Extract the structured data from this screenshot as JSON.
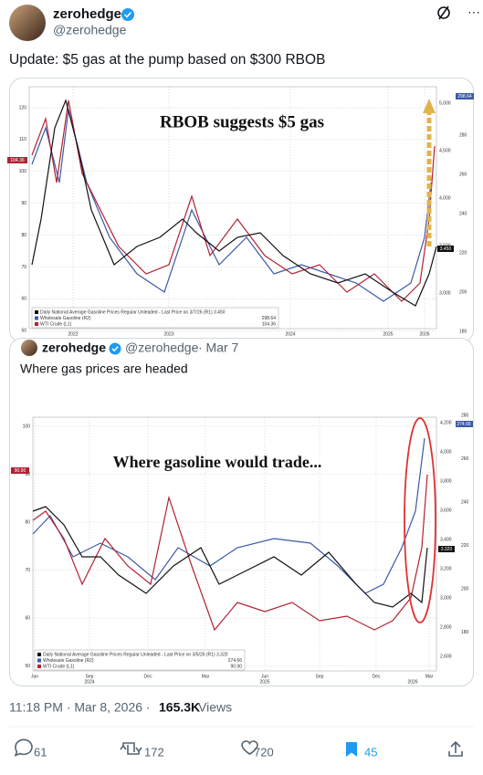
{
  "tweet": {
    "name": "zerohedge",
    "handle": "@zerohedge",
    "text": "Update: $5 gas at the pump based on $300 RBOB",
    "chart1": {
      "annotation": "RBOB suggests $5 gas",
      "left_ticks": [
        "120",
        "110",
        "100",
        "90",
        "80",
        "70",
        "60",
        "50"
      ],
      "right_ticks": [
        "5,000",
        "4,500",
        "4,000",
        "3,500",
        "3,000"
      ],
      "right2_ticks": [
        "280",
        "260",
        "240",
        "220",
        "200",
        "180"
      ],
      "years": [
        "2022",
        "2023",
        "2024",
        "2025",
        "2026"
      ],
      "flag_left": "104.36",
      "flag_right": "298.64",
      "flag_mid": "3.450",
      "legend": [
        "Daily National Average Gasoline Prices Regular Unleaded - Last Price on 3/7/26 (R1) 3.450",
        "Wholesale Gasoline (R2)",
        "WTI Crude (L1)"
      ],
      "legend_values": [
        "298.64",
        "104.36"
      ]
    },
    "quote": {
      "name": "zerohedge",
      "handle": "@zerohedge",
      "date": "· Mar 7",
      "text": "Where gas prices are headed",
      "chart2": {
        "annotation": "Where gasoline would trade...",
        "left_ticks": [
          "100",
          "90",
          "80",
          "70",
          "60",
          "50"
        ],
        "right_ticks": [
          "4,200",
          "4,000",
          "3,800",
          "3,600",
          "3,400",
          "3,200",
          "3,000",
          "2,800",
          "2,600"
        ],
        "right2_ticks": [
          "280",
          "260",
          "240",
          "220",
          "200",
          "180"
        ],
        "months": [
          "Jun",
          "Sep",
          "Dec",
          "Mar",
          "Jun",
          "Sep",
          "Dec",
          "Mar"
        ],
        "years": [
          "2024",
          "2025",
          "2026"
        ],
        "flag_left": "90.90",
        "flag_right": "274.66",
        "flag_mid": "3.320",
        "legend": [
          "Daily National Average Gasoline Prices Regular Unleaded - Last Price on 3/5/26 (R1) 3.320",
          "Wholesale Gasoline (R2)",
          "WTI Crude (L1)"
        ],
        "legend_values": [
          "274.66",
          "90.90"
        ]
      }
    },
    "time": "11:18 PM · Mar 8, 2026 ·",
    "views": "165.3K",
    "views_label": "Views",
    "actions": {
      "replies": "61",
      "reposts": "172",
      "likes": "720",
      "bookmarks": "45"
    }
  }
}
